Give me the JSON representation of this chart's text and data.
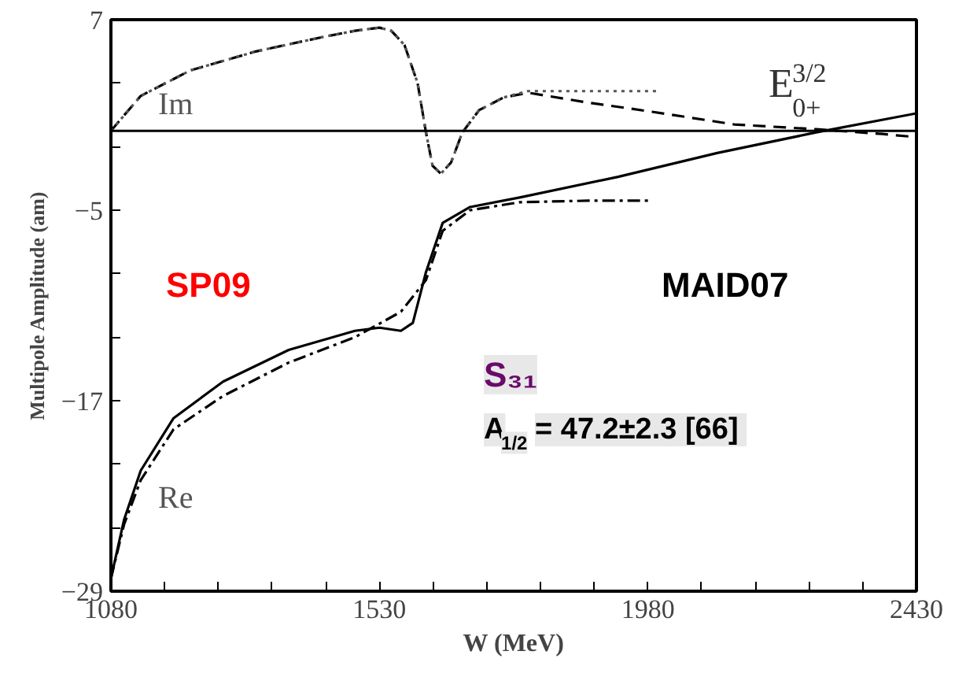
{
  "chart_data": {
    "type": "line",
    "xlabel": "W (MeV)",
    "ylabel": "Multipole Amplitude (am)",
    "xlim": [
      1080,
      2430
    ],
    "ylim": [
      -29,
      7
    ],
    "xticks": [
      1080,
      {
        "value": 1170,
        "label": null
      },
      {
        "value": 1260,
        "label": null
      },
      {
        "value": 1350,
        "label": null
      },
      {
        "value": 1440,
        "label": null
      },
      1530,
      {
        "value": 1620,
        "label": null
      },
      {
        "value": 1710,
        "label": null
      },
      {
        "value": 1800,
        "label": null
      },
      {
        "value": 1890,
        "label": null
      },
      1980,
      {
        "value": 2070,
        "label": null
      },
      {
        "value": 2160,
        "label": null
      },
      {
        "value": 2250,
        "label": null
      },
      {
        "value": 2340,
        "label": null
      },
      2430
    ],
    "yticks": [
      7,
      {
        "value": 3,
        "label": null
      },
      {
        "value": -1,
        "label": null
      },
      -5,
      {
        "value": -9,
        "label": null
      },
      {
        "value": -13,
        "label": null
      },
      -17,
      {
        "value": -21,
        "label": null
      },
      {
        "value": -25,
        "label": null
      },
      -29
    ],
    "grid": false,
    "series": [
      {
        "color": "#000000",
        "line_style": "solid",
        "x": [
          1080,
          1102,
          1130,
          1185,
          1268,
          1378,
          1489,
          1530,
          1566,
          1586,
          1608,
          1636,
          1682,
          1765,
          1930,
          2096,
          2262,
          2430
        ],
        "values": [
          -28.2,
          -24.5,
          -21.4,
          -18.1,
          -15.8,
          -13.8,
          -12.6,
          -12.4,
          -12.6,
          -12.1,
          -8.9,
          -5.8,
          -4.8,
          -4.2,
          -2.9,
          -1.4,
          -0.1,
          1.1
        ]
      },
      {
        "color": "#000000",
        "line_style": "dashdot",
        "x": [
          1080,
          1102,
          1130,
          1185,
          1268,
          1378,
          1489,
          1566,
          1608,
          1636,
          1682,
          1765,
          1880,
          1980
        ],
        "values": [
          -28.2,
          -24.8,
          -22.0,
          -18.8,
          -16.7,
          -14.6,
          -13.0,
          -11.4,
          -9.4,
          -6.3,
          -5.0,
          -4.5,
          -4.4,
          -4.4
        ]
      },
      {
        "color": "#000000",
        "line_style": "dashed",
        "x": [
          1080,
          1130,
          1213,
          1323,
          1434,
          1489,
          1530,
          1550,
          1572,
          1594,
          1608,
          1619,
          1633,
          1650,
          1669,
          1697,
          1738,
          1779,
          1876,
          1987,
          2125,
          2262,
          2373,
          2430
        ],
        "values": [
          0,
          2.2,
          3.8,
          5.0,
          5.9,
          6.3,
          6.5,
          6.3,
          5.4,
          3.0,
          -0.1,
          -2.2,
          -2.7,
          -2.0,
          -0.1,
          1.3,
          2.1,
          2.4,
          1.8,
          1.2,
          0.4,
          0.1,
          -0.2,
          -0.4
        ]
      },
      {
        "color": "#555555",
        "line_style": "dotted",
        "x": [
          1080,
          1130,
          1213,
          1323,
          1434,
          1489,
          1530,
          1550,
          1572,
          1594,
          1608,
          1619,
          1633,
          1650,
          1669,
          1697,
          1738,
          1779,
          1876,
          1999
        ],
        "values": [
          0,
          2.2,
          3.8,
          5.0,
          5.9,
          6.3,
          6.5,
          6.3,
          5.4,
          3.0,
          -0.1,
          -2.2,
          -2.7,
          -2.0,
          -0.1,
          1.3,
          2.1,
          2.5,
          2.5,
          2.5
        ]
      }
    ],
    "ref_lines": [
      {
        "axis": "y",
        "value": 0,
        "label": null,
        "color": "#000000",
        "line_style": "solid"
      }
    ],
    "annotations": [
      "Im",
      "Re",
      "E$^{3/2}$$_{0+}$",
      "SP09",
      "MAID07",
      "S₃₁",
      "A$_{1/2}$ = 47.2±2.3 [66]"
    ]
  }
}
